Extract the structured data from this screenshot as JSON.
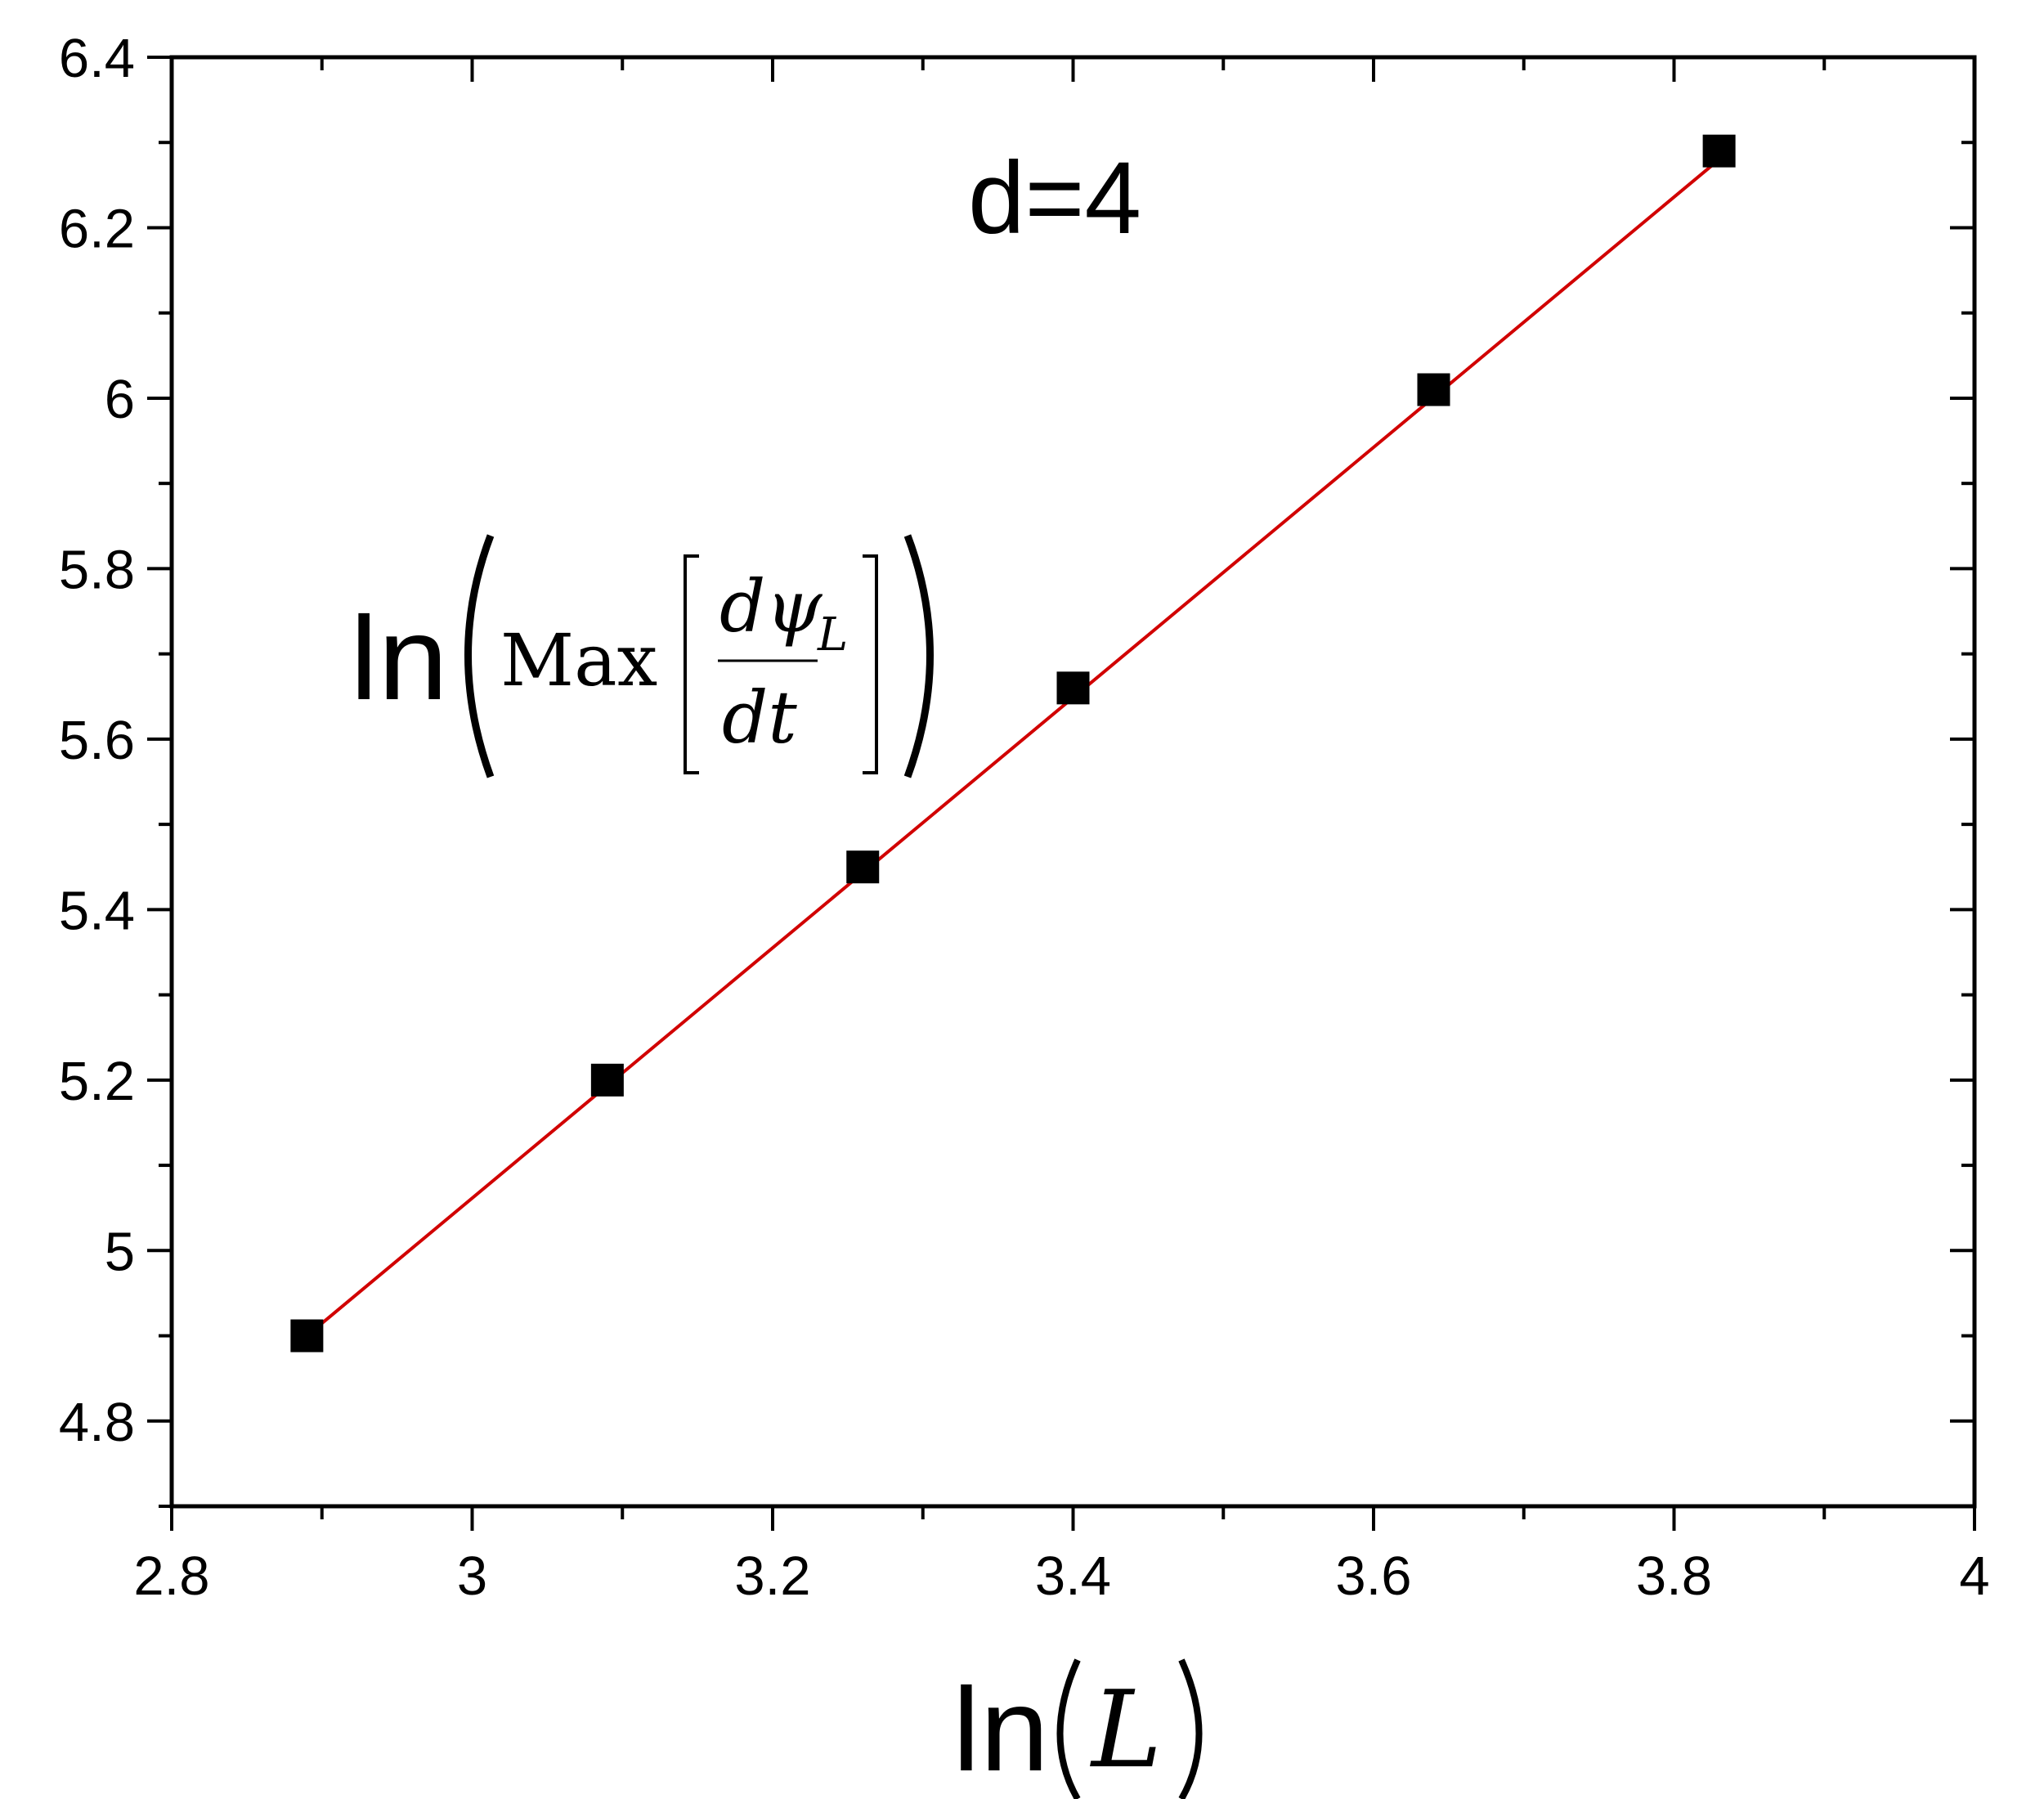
{
  "chart_data": {
    "type": "scatter",
    "annotation": "d=4",
    "ylabel": {
      "prefix": "ln",
      "func": "Max",
      "numerator": "dψ",
      "subscript": "L",
      "denominator": "dt"
    },
    "xlabel": {
      "prefix": "ln",
      "var": "L"
    },
    "xlim": [
      2.8,
      4.0
    ],
    "ylim": [
      4.7,
      6.4
    ],
    "xticks": [
      "2.8",
      "3",
      "3.2",
      "3.4",
      "3.6",
      "3.8",
      "4"
    ],
    "yticks": [
      "4.8",
      "5",
      "5.2",
      "5.4",
      "5.6",
      "5.8",
      "6",
      "6.2",
      "6.4"
    ],
    "grid": false,
    "series": [
      {
        "marker": "square",
        "color": "#000000",
        "x": [
          2.89,
          3.09,
          3.26,
          3.4,
          3.64,
          3.83
        ],
        "y": [
          4.9,
          5.2,
          5.45,
          5.66,
          6.01,
          6.29
        ]
      }
    ],
    "fit": {
      "color": "#d10000",
      "x": [
        2.89,
        3.83
      ],
      "y": [
        4.9,
        6.28
      ]
    }
  }
}
